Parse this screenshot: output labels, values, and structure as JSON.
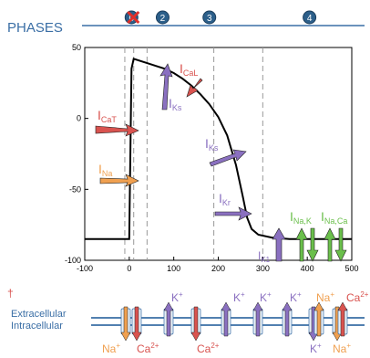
{
  "header": {
    "title": "PHASES",
    "phases": [
      {
        "label": "0",
        "x": 5,
        "crossed": true
      },
      {
        "label": "2",
        "x": 75
      },
      {
        "label": "3",
        "x": 180
      },
      {
        "label": "4",
        "x": 405
      }
    ]
  },
  "chart_data": {
    "type": "line",
    "xlim": [
      -100,
      500
    ],
    "ylim": [
      -100,
      50
    ],
    "xticks": [
      -100,
      0,
      100,
      200,
      300,
      400,
      500
    ],
    "yticks": [
      -100,
      -50,
      0,
      50
    ],
    "grid": false,
    "phase_boundaries": [
      -10,
      10,
      40,
      190,
      300
    ],
    "series": [
      {
        "color": "#000000",
        "x": [
          -100,
          -10,
          0,
          5,
          10,
          40,
          60,
          80,
          100,
          120,
          140,
          160,
          180,
          200,
          220,
          240,
          255,
          265,
          275,
          290,
          320,
          360,
          400,
          500
        ],
        "y": [
          -85,
          -85,
          -85,
          35,
          42,
          39,
          37,
          35,
          32,
          28,
          23,
          17,
          10,
          1,
          -12,
          -33,
          -55,
          -70,
          -78,
          -82,
          -84,
          -85,
          -85,
          -85
        ]
      }
    ],
    "annotations": [
      {
        "label": "I",
        "sub": "CaT",
        "color": "#d9534f"
      },
      {
        "label": "I",
        "sub": "Na",
        "color": "#f0a050"
      },
      {
        "label": "I",
        "sub": "CaL",
        "color": "#d9534f"
      },
      {
        "label": "I",
        "sub": "Ks",
        "color": "#8a70c0"
      },
      {
        "label": "I",
        "sub": "Ks",
        "color": "#8a70c0"
      },
      {
        "label": "I",
        "sub": "Kr",
        "color": "#8a70c0"
      },
      {
        "label": "I",
        "sub": "K1",
        "color": "#8a70c0"
      },
      {
        "label": "I",
        "sub": "Na,K",
        "color": "#6abf4b"
      },
      {
        "label": "I",
        "sub": "Na,Ca",
        "color": "#6abf4b"
      }
    ]
  },
  "membrane": {
    "extracellular": "Extracellular",
    "intracellular": "Intracellular",
    "marker": "†",
    "top_ions": [
      {
        "text": "K",
        "sup": "+",
        "color": "#8a70c0"
      },
      {
        "text": "K",
        "sup": "+",
        "color": "#8a70c0"
      },
      {
        "text": "K",
        "sup": "+",
        "color": "#8a70c0"
      },
      {
        "text": "K",
        "sup": "+",
        "color": "#8a70c0"
      },
      {
        "text": "Na",
        "sup": "+",
        "color": "#f0a050"
      },
      {
        "text": "Ca",
        "sup": "2+",
        "color": "#d9534f"
      }
    ],
    "bottom_ions": [
      {
        "text": "Na",
        "sup": "+",
        "color": "#f0a050"
      },
      {
        "text": "Ca",
        "sup": "2+",
        "color": "#d9534f"
      },
      {
        "text": "Ca",
        "sup": "2+",
        "color": "#d9534f"
      },
      {
        "text": "K",
        "sup": "+",
        "color": "#8a70c0"
      },
      {
        "text": "Na",
        "sup": "+",
        "color": "#f0a050"
      }
    ]
  },
  "colors": {
    "ca": "#d9534f",
    "na": "#f0a050",
    "k": "#8a70c0",
    "exchanger": "#6abf4b",
    "header": "#3a6ea5"
  }
}
